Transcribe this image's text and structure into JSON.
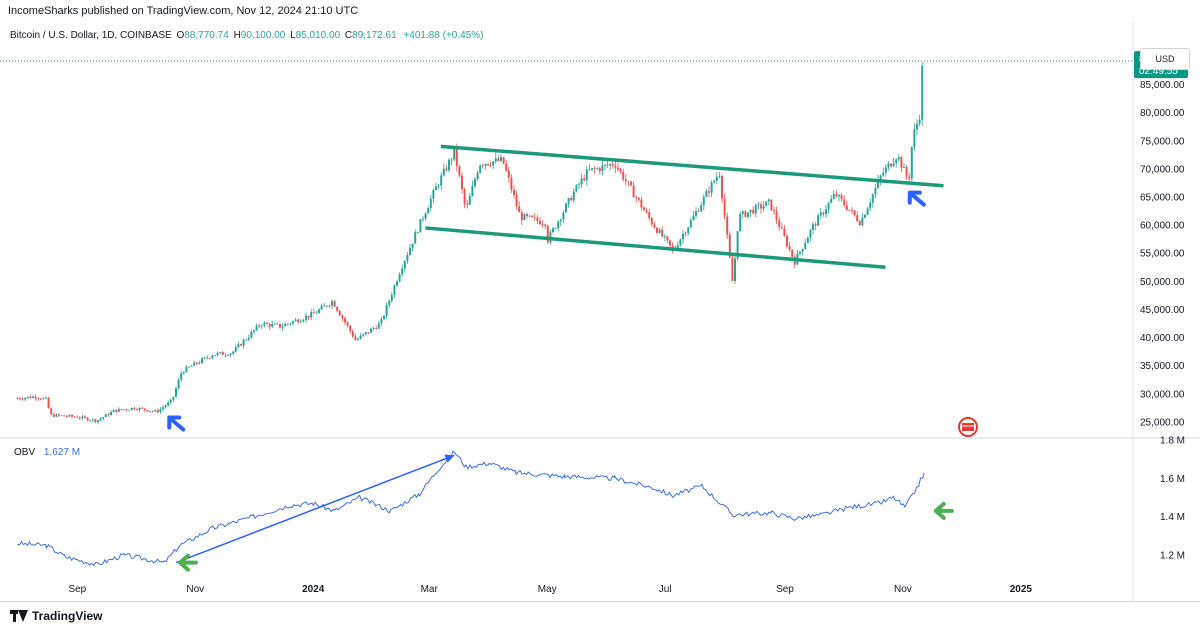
{
  "header": {
    "publish_line": "IncomeSharks published on TradingView.com, Nov 12, 2024 21:10 UTC"
  },
  "symbol_bar": {
    "name": "Bitcoin / U.S. Dollar, 1D, COINBASE",
    "open_label": "O",
    "open": "88,770.74",
    "high_label": "H",
    "high": "90,100.00",
    "low_label": "L",
    "low": "85,010.00",
    "close_label": "C",
    "close": "89,172.61",
    "change": "+401.88 (+0.45%)"
  },
  "currency_button": "USD",
  "price_tag": {
    "price": "89,172.61",
    "countdown": "02:49:55"
  },
  "obv_label": {
    "name": "OBV",
    "value": "1.627 M"
  },
  "footer": {
    "brand": "TradingView"
  },
  "colors": {
    "up": "#26a69a",
    "down": "#ef5350",
    "channel": "#1a9a7a",
    "obv_line": "#3b6fe0",
    "arrow_blue": "#2962ff",
    "arrow_green": "#4caf50",
    "price_tag_bg": "#089981"
  },
  "chart_data": [
    {
      "type": "candlestick",
      "title": "Bitcoin / U.S. Dollar, 1D, COINBASE",
      "price_axis": {
        "ticks": [
          25000,
          30000,
          35000,
          40000,
          45000,
          50000,
          55000,
          60000,
          65000,
          70000,
          75000,
          80000,
          85000
        ],
        "tick_labels": [
          "25,000.00",
          "30,000.00",
          "35,000.00",
          "40,000.00",
          "45,000.00",
          "50,000.00",
          "55,000.00",
          "60,000.00",
          "65,000.00",
          "70,000.00",
          "75,000.00",
          "80,000.00",
          "85,000.00"
        ],
        "range": [
          22500,
          91500
        ],
        "last_price": 89172.61
      },
      "time_axis": {
        "labels": [
          "Sep",
          "Nov",
          "2024",
          "Mar",
          "May",
          "Jul",
          "Sep",
          "Nov",
          "2025"
        ],
        "bold": [
          false,
          false,
          true,
          false,
          false,
          false,
          false,
          false,
          true
        ]
      },
      "price_path": [
        [
          "2023-08-01",
          29200
        ],
        [
          "2023-08-10",
          29500
        ],
        [
          "2023-08-16",
          29000
        ],
        [
          "2023-08-18",
          26200
        ],
        [
          "2023-09-01",
          25900
        ],
        [
          "2023-09-11",
          25200
        ],
        [
          "2023-09-20",
          27000
        ],
        [
          "2023-10-01",
          27500
        ],
        [
          "2023-10-12",
          26800
        ],
        [
          "2023-10-20",
          28800
        ],
        [
          "2023-10-25",
          34000
        ],
        [
          "2023-11-10",
          37000
        ],
        [
          "2023-11-20",
          37300
        ],
        [
          "2023-12-05",
          42500
        ],
        [
          "2023-12-15",
          42000
        ],
        [
          "2024-01-01",
          44200
        ],
        [
          "2024-01-11",
          46500
        ],
        [
          "2024-01-23",
          39500
        ],
        [
          "2024-02-05",
          42600
        ],
        [
          "2024-02-15",
          52000
        ],
        [
          "2024-02-28",
          62500
        ],
        [
          "2024-03-05",
          67000
        ],
        [
          "2024-03-14",
          73000
        ],
        [
          "2024-03-20",
          62500
        ],
        [
          "2024-03-27",
          71000
        ],
        [
          "2024-04-08",
          71500
        ],
        [
          "2024-04-17",
          61500
        ],
        [
          "2024-04-30",
          60500
        ],
        [
          "2024-05-01",
          57200
        ],
        [
          "2024-05-15",
          66000
        ],
        [
          "2024-05-22",
          69500
        ],
        [
          "2024-06-05",
          71000
        ],
        [
          "2024-06-24",
          60500
        ],
        [
          "2024-07-05",
          55500
        ],
        [
          "2024-07-14",
          60500
        ],
        [
          "2024-07-29",
          69500
        ],
        [
          "2024-08-05",
          49500
        ],
        [
          "2024-08-08",
          61500
        ],
        [
          "2024-08-24",
          64000
        ],
        [
          "2024-09-06",
          53500
        ],
        [
          "2024-09-15",
          59500
        ],
        [
          "2024-09-27",
          65500
        ],
        [
          "2024-10-10",
          60500
        ],
        [
          "2024-10-21",
          69000
        ],
        [
          "2024-10-29",
          72500
        ],
        [
          "2024-11-04",
          67800
        ],
        [
          "2024-11-06",
          75500
        ],
        [
          "2024-11-10",
          80000
        ],
        [
          "2024-11-11",
          88000
        ],
        [
          "2024-11-12",
          89172
        ]
      ],
      "annotations": {
        "channel_top": [
          [
            "2024-03-07",
            74000
          ],
          [
            "2024-11-22",
            67000
          ]
        ],
        "channel_bottom": [
          [
            "2024-02-28",
            59500
          ],
          [
            "2024-10-23",
            52500
          ]
        ],
        "arrows": [
          {
            "color": "blue",
            "at": [
              "2023-10-17",
              26500
            ]
          },
          {
            "color": "blue",
            "at": [
              "2024-11-03",
              66500
            ]
          }
        ]
      }
    },
    {
      "type": "line",
      "title": "OBV",
      "value_axis": {
        "ticks": [
          1.2,
          1.4,
          1.6,
          1.8
        ],
        "tick_labels": [
          "1.2 M",
          "1.4 M",
          "1.6 M",
          "1.8 M"
        ],
        "range": [
          1.08,
          1.8
        ]
      },
      "series": [
        {
          "name": "OBV",
          "points": [
            [
              "2023-08-01",
              1.26
            ],
            [
              "2023-08-16",
              1.25
            ],
            [
              "2023-08-26",
              1.19
            ],
            [
              "2023-09-11",
              1.15
            ],
            [
              "2023-09-25",
              1.2
            ],
            [
              "2023-10-16",
              1.16
            ],
            [
              "2023-10-24",
              1.25
            ],
            [
              "2023-11-10",
              1.34
            ],
            [
              "2023-12-01",
              1.4
            ],
            [
              "2023-12-20",
              1.46
            ],
            [
              "2024-01-01",
              1.47
            ],
            [
              "2024-01-12",
              1.43
            ],
            [
              "2024-01-25",
              1.5
            ],
            [
              "2024-02-10",
              1.43
            ],
            [
              "2024-02-25",
              1.52
            ],
            [
              "2024-03-05",
              1.64
            ],
            [
              "2024-03-14",
              1.74
            ],
            [
              "2024-03-20",
              1.66
            ],
            [
              "2024-04-01",
              1.68
            ],
            [
              "2024-04-15",
              1.63
            ],
            [
              "2024-05-10",
              1.61
            ],
            [
              "2024-06-05",
              1.6
            ],
            [
              "2024-06-25",
              1.55
            ],
            [
              "2024-07-05",
              1.51
            ],
            [
              "2024-07-20",
              1.56
            ],
            [
              "2024-08-05",
              1.41
            ],
            [
              "2024-08-25",
              1.42
            ],
            [
              "2024-09-06",
              1.39
            ],
            [
              "2024-09-20",
              1.41
            ],
            [
              "2024-10-05",
              1.45
            ],
            [
              "2024-10-20",
              1.47
            ],
            [
              "2024-10-27",
              1.5
            ],
            [
              "2024-11-02",
              1.45
            ],
            [
              "2024-11-06",
              1.51
            ],
            [
              "2024-11-12",
              1.627
            ]
          ]
        }
      ],
      "annotations": {
        "trend_arrow": [
          [
            "2023-10-22",
            1.16
          ],
          [
            "2024-03-14",
            1.72
          ]
        ],
        "arrows": [
          {
            "color": "green",
            "at": [
              "2023-10-22",
              1.16
            ]
          },
          {
            "color": "green",
            "at": [
              "2024-11-18",
              1.43
            ]
          }
        ]
      }
    }
  ]
}
